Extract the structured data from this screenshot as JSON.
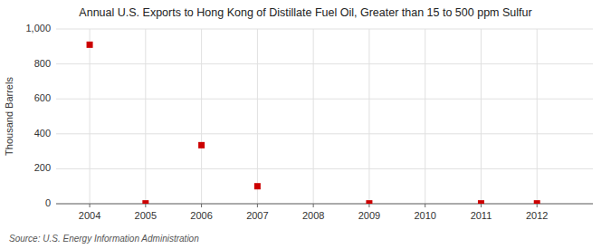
{
  "chart_data": {
    "type": "scatter",
    "title": "Annual U.S. Exports to Hong Kong of Distillate Fuel Oil, Greater than 15 to 500 ppm Sulfur",
    "y_label": "Thousand Barrels",
    "annotations": [
      "Source: U.S. Energy Information Administration"
    ],
    "x": [
      2004,
      2005,
      2006,
      2007,
      2009,
      2011,
      2012
    ],
    "values": [
      910,
      2,
      335,
      100,
      2,
      2,
      2
    ],
    "color": "#CC0000",
    "marker": "square",
    "xlim": [
      2003.4,
      2013.0
    ],
    "ylim": [
      0,
      1000
    ],
    "xticks": [
      2004,
      2005,
      2006,
      2007,
      2008,
      2009,
      2010,
      2011,
      2012
    ],
    "yticks": [
      0,
      200,
      400,
      600,
      800,
      {
        "value": 1000,
        "label": "1,000"
      }
    ],
    "grid": true
  }
}
